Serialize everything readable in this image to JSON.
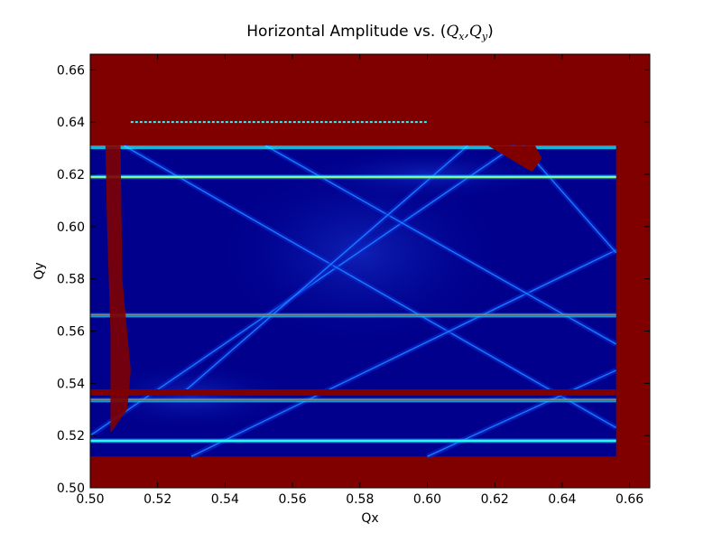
{
  "chart_data": {
    "type": "heatmap",
    "title": {
      "prefix": "Horizontal Amplitude vs. (",
      "q1": "Q",
      "q1_sub": "x",
      "sep": ",",
      "q2": "Q",
      "q2_sub": "y",
      "suffix": ")"
    },
    "xlabel": "Qx",
    "ylabel": "Qy",
    "xlim": [
      0.5,
      0.666
    ],
    "ylim": [
      0.5,
      0.666
    ],
    "xticks": [
      "0.50",
      "0.52",
      "0.54",
      "0.56",
      "0.58",
      "0.60",
      "0.62",
      "0.64",
      "0.66"
    ],
    "yticks": [
      "0.50",
      "0.52",
      "0.54",
      "0.56",
      "0.58",
      "0.60",
      "0.62",
      "0.64",
      "0.66"
    ],
    "xtick_values": [
      0.5,
      0.52,
      0.54,
      0.56,
      0.58,
      0.6,
      0.62,
      0.64,
      0.66
    ],
    "ytick_values": [
      0.5,
      0.52,
      0.54,
      0.56,
      0.58,
      0.6,
      0.62,
      0.64,
      0.66
    ],
    "colormap": "jet",
    "colors": {
      "saturated": "#800000",
      "background_low": "#00008c",
      "mid_low": "#0a2ad8",
      "mid": "#1e90ff",
      "cyan": "#22ffff",
      "yellow": "#ffe600",
      "red": "#e01010"
    },
    "region": {
      "qx_range": [
        0.5,
        0.656
      ],
      "qy_range": [
        0.512,
        0.631
      ]
    },
    "horizontal_resonances": [
      {
        "qy": 0.64,
        "color": "cyan-dotted"
      },
      {
        "qy": 0.619,
        "color": "yellow"
      },
      {
        "qy": 0.566,
        "color": "red"
      },
      {
        "qy": 0.5365,
        "color": "saturated"
      },
      {
        "qy": 0.5335,
        "color": "red"
      },
      {
        "qy": 0.518,
        "color": "cyan"
      }
    ],
    "diagonal_resonances": [
      {
        "from": [
          0.5,
          0.52
        ],
        "to": [
          0.626,
          0.631
        ]
      },
      {
        "from": [
          0.51,
          0.631
        ],
        "to": [
          0.656,
          0.523
        ]
      },
      {
        "from": [
          0.53,
          0.512
        ],
        "to": [
          0.656,
          0.591
        ]
      },
      {
        "from": [
          0.552,
          0.631
        ],
        "to": [
          0.656,
          0.555
        ]
      },
      {
        "from": [
          0.528,
          0.537
        ],
        "to": [
          0.612,
          0.631
        ]
      },
      {
        "from": [
          0.6,
          0.512
        ],
        "to": [
          0.656,
          0.545
        ]
      },
      {
        "from": [
          0.628,
          0.631
        ],
        "to": [
          0.656,
          0.59
        ]
      }
    ]
  }
}
